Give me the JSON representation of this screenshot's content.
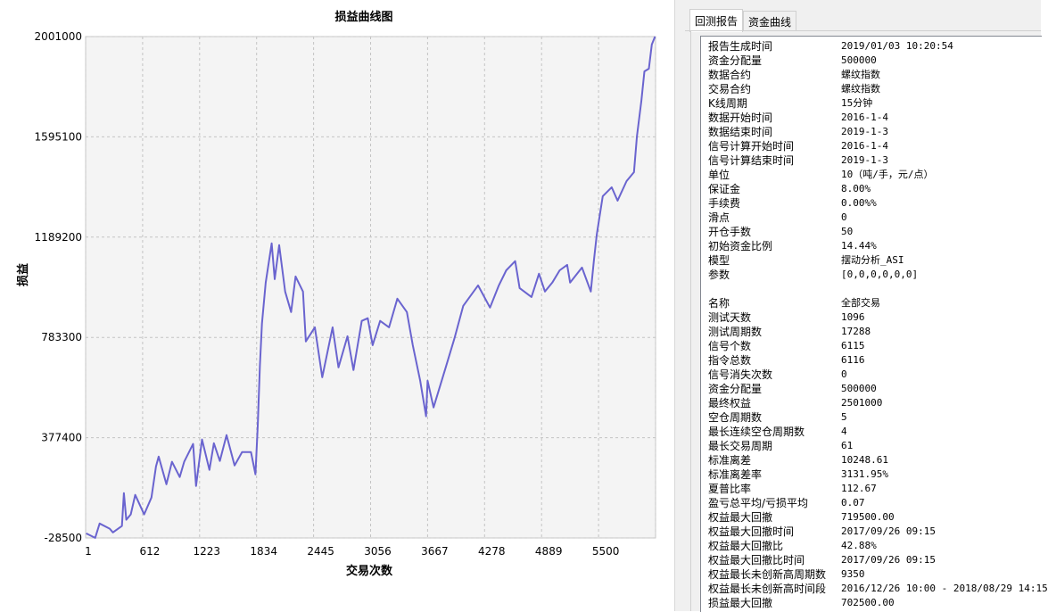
{
  "chart": {
    "title": "损益曲线图",
    "ylabel": "损益",
    "xlabel": "交易次数",
    "line_color": "#6a64cf",
    "plot_bg": "#f4f4f4"
  },
  "chart_data": {
    "type": "line",
    "title": "损益曲线图",
    "xlabel": "交易次数",
    "ylabel": "损益",
    "xlim": [
      1,
      6111
    ],
    "ylim": [
      -28500,
      2001000
    ],
    "x_ticks": [
      "1",
      "612",
      "1223",
      "1834",
      "2445",
      "3056",
      "3667",
      "4278",
      "4889",
      "5500"
    ],
    "y_ticks": [
      "2001000",
      "1595100",
      "1189200",
      "783300",
      "377400",
      "-28500"
    ],
    "grid": true,
    "series": [
      {
        "x": [
          7,
          103,
          151,
          259,
          294,
          390,
          411,
          437,
          485,
          533,
          628,
          707,
          755,
          784,
          867,
          927,
          1010,
          1058,
          1153,
          1185,
          1249,
          1328,
          1376,
          1440,
          1512,
          1598,
          1678,
          1774,
          1822,
          1846,
          1869,
          1891,
          1932,
          1996,
          2028,
          2076,
          2140,
          2204,
          2252,
          2331,
          2362,
          2458,
          2538,
          2649,
          2712,
          2808,
          2872,
          2961,
          3025,
          3078,
          3158,
          3254,
          3343,
          3445,
          3508,
          3588,
          3651,
          3667,
          3731,
          3858,
          3954,
          4049,
          4208,
          4336,
          4431,
          4510,
          4606,
          4654,
          4781,
          4861,
          4925,
          5004,
          5083,
          5163,
          5195,
          5322,
          5417,
          5449,
          5481,
          5545,
          5641,
          5704,
          5800,
          5880,
          5911,
          5959,
          5991,
          6039,
          6071,
          6105
        ],
        "y": [
          -10000,
          -28000,
          30000,
          9000,
          -6000,
          20000,
          153000,
          45000,
          67000,
          146000,
          67000,
          135000,
          261000,
          301000,
          189000,
          280000,
          218000,
          280000,
          352000,
          182000,
          370000,
          247000,
          355000,
          283000,
          388000,
          265000,
          319000,
          319000,
          229000,
          427000,
          669000,
          839000,
          1005000,
          1164000,
          1019000,
          1157000,
          969000,
          886000,
          1030000,
          969000,
          767000,
          824000,
          622000,
          824000,
          662000,
          788000,
          651000,
          850000,
          861000,
          752000,
          850000,
          824000,
          940000,
          886000,
          752000,
          608000,
          464000,
          608000,
          500000,
          658000,
          778000,
          911000,
          994000,
          904000,
          994000,
          1055000,
          1092000,
          983000,
          947000,
          1041000,
          969000,
          1005000,
          1055000,
          1077000,
          1005000,
          1066000,
          969000,
          1092000,
          1200000,
          1355000,
          1391000,
          1337000,
          1416000,
          1452000,
          1597000,
          1741000,
          1860000,
          1871000,
          1969000,
          2001000
        ]
      }
    ]
  },
  "report": {
    "tabs": [
      {
        "label": "回测报告",
        "active": true
      },
      {
        "label": "资金曲线",
        "active": false
      }
    ],
    "rows": [
      {
        "k": "报告生成时间",
        "v": "2019/01/03 10:20:54"
      },
      {
        "k": "资金分配量",
        "v": "500000"
      },
      {
        "k": "数据合约",
        "v": "螺纹指数"
      },
      {
        "k": "交易合约",
        "v": "螺纹指数"
      },
      {
        "k": "K线周期",
        "v": "15分钟"
      },
      {
        "k": "数据开始时间",
        "v": "2016-1-4"
      },
      {
        "k": "数据结束时间",
        "v": "2019-1-3"
      },
      {
        "k": "信号计算开始时间",
        "v": "2016-1-4"
      },
      {
        "k": "信号计算结束时间",
        "v": "2019-1-3"
      },
      {
        "k": "单位",
        "v": "10（吨/手，元/点）"
      },
      {
        "k": "保证金",
        "v": "8.00%"
      },
      {
        "k": "手续费",
        "v": "0.00%%"
      },
      {
        "k": "滑点",
        "v": "0"
      },
      {
        "k": "开仓手数",
        "v": "50"
      },
      {
        "k": "初始资金比例",
        "v": "14.44%"
      },
      {
        "k": "模型",
        "v": "摆动分析_ASI"
      },
      {
        "k": "参数",
        "v": "[0,0,0,0,0,0]"
      },
      {
        "k": "",
        "v": ""
      },
      {
        "k": "名称",
        "v": "全部交易"
      },
      {
        "k": "测试天数",
        "v": "1096"
      },
      {
        "k": "测试周期数",
        "v": "17288"
      },
      {
        "k": "信号个数",
        "v": "6115"
      },
      {
        "k": "指令总数",
        "v": "6116"
      },
      {
        "k": "信号消失次数",
        "v": "0"
      },
      {
        "k": "资金分配量",
        "v": "500000"
      },
      {
        "k": "最终权益",
        "v": "2501000"
      },
      {
        "k": "空仓周期数",
        "v": "5"
      },
      {
        "k": "最长连续空仓周期数",
        "v": "4"
      },
      {
        "k": "最长交易周期",
        "v": "61"
      },
      {
        "k": "标准离差",
        "v": "10248.61"
      },
      {
        "k": "标准离差率",
        "v": "3131.95%"
      },
      {
        "k": "夏普比率",
        "v": "112.67"
      },
      {
        "k": "盈亏总平均/亏损平均",
        "v": "0.07"
      },
      {
        "k": "权益最大回撤",
        "v": "719500.00"
      },
      {
        "k": "权益最大回撤时间",
        "v": "2017/09/26 09:15"
      },
      {
        "k": "权益最大回撤比",
        "v": "42.88%"
      },
      {
        "k": "权益最大回撤比时间",
        "v": "2017/09/26 09:15"
      },
      {
        "k": "权益最长未创新高周期数",
        "v": "9350"
      },
      {
        "k": "权益最长未创新高时间段",
        "v": "2016/12/26 10:00 - 2018/08/29 14:15"
      },
      {
        "k": "损益最大回撤",
        "v": "702500.00"
      }
    ]
  }
}
